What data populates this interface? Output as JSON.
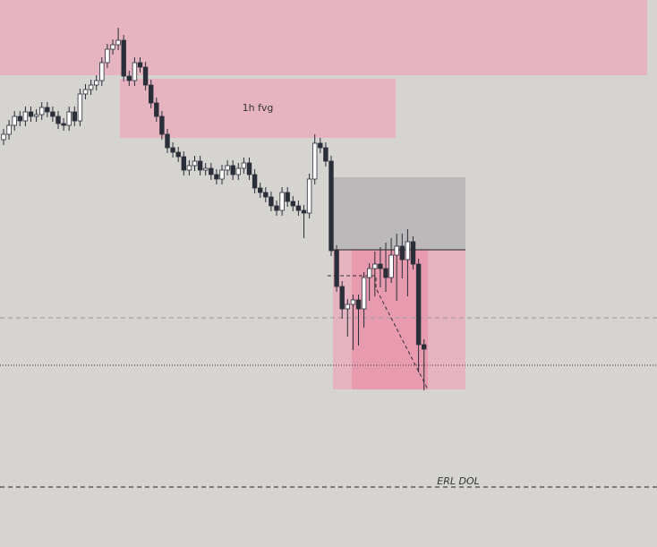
{
  "chart_data": {
    "type": "candlestick",
    "annotations": [
      "1h fvg",
      "ERL DOL"
    ],
    "ylim": [
      0,
      611
    ],
    "up_color": "#ffffff",
    "down_color": "#2a2e39",
    "wick_color": "#2a2e39",
    "open": [
      455,
      461,
      471,
      481,
      476,
      486,
      481,
      483,
      491,
      486,
      481,
      473,
      471,
      486,
      476,
      506,
      511,
      516,
      521,
      541,
      556,
      561,
      566,
      526,
      521,
      541,
      536,
      516,
      496,
      481,
      461,
      446,
      441,
      436,
      421,
      426,
      431,
      421,
      423,
      416,
      411,
      421,
      426,
      416,
      423,
      429,
      416,
      401,
      396,
      391,
      381,
      376,
      396,
      386,
      381,
      376,
      373,
      411,
      451,
      446,
      431,
      331,
      291,
      266,
      271,
      276,
      266,
      301,
      311,
      316,
      311,
      301,
      326,
      336,
      321,
      341,
      316,
      226
    ],
    "high": [
      467,
      477,
      487,
      487,
      492,
      492,
      489,
      497,
      497,
      492,
      487,
      479,
      492,
      492,
      512,
      517,
      522,
      527,
      547,
      562,
      567,
      580,
      572,
      532,
      547,
      547,
      542,
      522,
      502,
      487,
      467,
      452,
      447,
      442,
      432,
      437,
      437,
      429,
      429,
      422,
      427,
      432,
      432,
      429,
      435,
      435,
      422,
      407,
      402,
      397,
      387,
      402,
      402,
      392,
      387,
      382,
      417,
      461,
      457,
      452,
      437,
      337,
      297,
      277,
      282,
      282,
      307,
      317,
      330,
      335,
      340,
      345,
      350,
      350,
      355,
      347,
      322,
      232
    ],
    "low": [
      449,
      455,
      465,
      470,
      470,
      475,
      475,
      477,
      480,
      475,
      467,
      465,
      465,
      470,
      470,
      500,
      505,
      510,
      515,
      535,
      550,
      555,
      520,
      515,
      515,
      530,
      510,
      490,
      475,
      455,
      440,
      435,
      430,
      415,
      415,
      420,
      415,
      415,
      410,
      405,
      405,
      415,
      410,
      410,
      417,
      410,
      395,
      390,
      385,
      375,
      370,
      370,
      380,
      375,
      370,
      345,
      367,
      405,
      440,
      425,
      325,
      285,
      255,
      235,
      220,
      225,
      245,
      275,
      280,
      290,
      285,
      295,
      275,
      300,
      280,
      310,
      195,
      175
    ],
    "close": [
      461,
      471,
      481,
      476,
      486,
      481,
      483,
      491,
      486,
      481,
      473,
      471,
      486,
      476,
      506,
      511,
      516,
      521,
      541,
      556,
      561,
      566,
      526,
      521,
      541,
      536,
      516,
      496,
      481,
      461,
      446,
      441,
      436,
      421,
      426,
      431,
      421,
      423,
      416,
      411,
      421,
      426,
      416,
      423,
      429,
      416,
      401,
      396,
      391,
      381,
      376,
      396,
      386,
      381,
      376,
      373,
      411,
      451,
      446,
      431,
      331,
      291,
      266,
      271,
      276,
      266,
      301,
      311,
      316,
      311,
      301,
      326,
      336,
      321,
      341,
      316,
      226,
      221
    ]
  }
}
